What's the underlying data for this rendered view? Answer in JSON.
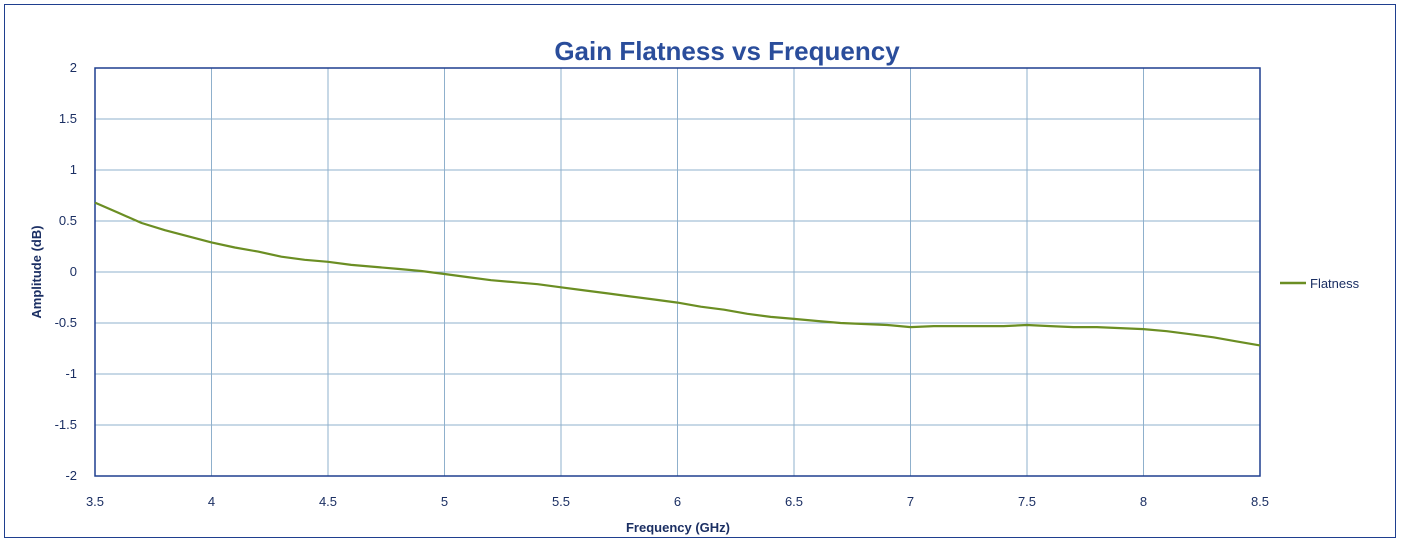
{
  "chart_data": {
    "type": "line",
    "title": "Gain Flatness vs Frequency",
    "xlabel": "Frequency (GHz)",
    "ylabel": "Amplitude (dB)",
    "xlim": [
      3.5,
      8.5
    ],
    "ylim": [
      -2,
      2
    ],
    "x_ticks": [
      "3.5",
      "4",
      "4.5",
      "5",
      "5.5",
      "6",
      "6.5",
      "7",
      "7.5",
      "8",
      "8.5"
    ],
    "y_ticks": [
      "2",
      "1.5",
      "1",
      "0.5",
      "0",
      "-0.5",
      "-1",
      "-1.5",
      "-2"
    ],
    "grid": true,
    "legend": "right",
    "series": [
      {
        "name": "Flatness",
        "color": "#6b8e23",
        "x": [
          3.5,
          3.6,
          3.7,
          3.8,
          3.9,
          4.0,
          4.1,
          4.2,
          4.3,
          4.4,
          4.5,
          4.6,
          4.7,
          4.8,
          4.9,
          5.0,
          5.1,
          5.2,
          5.3,
          5.4,
          5.5,
          5.6,
          5.7,
          5.8,
          5.9,
          6.0,
          6.1,
          6.2,
          6.3,
          6.4,
          6.5,
          6.6,
          6.7,
          6.8,
          6.9,
          7.0,
          7.1,
          7.2,
          7.3,
          7.4,
          7.5,
          7.6,
          7.7,
          7.8,
          7.9,
          8.0,
          8.1,
          8.2,
          8.3,
          8.4,
          8.5
        ],
        "y": [
          0.68,
          0.58,
          0.48,
          0.41,
          0.35,
          0.29,
          0.24,
          0.2,
          0.15,
          0.12,
          0.1,
          0.07,
          0.05,
          0.03,
          0.01,
          -0.02,
          -0.05,
          -0.08,
          -0.1,
          -0.12,
          -0.15,
          -0.18,
          -0.21,
          -0.24,
          -0.27,
          -0.3,
          -0.34,
          -0.37,
          -0.41,
          -0.44,
          -0.46,
          -0.48,
          -0.5,
          -0.51,
          -0.52,
          -0.54,
          -0.53,
          -0.53,
          -0.53,
          -0.53,
          -0.52,
          -0.53,
          -0.54,
          -0.54,
          -0.55,
          -0.56,
          -0.58,
          -0.61,
          -0.64,
          -0.68,
          -0.72
        ]
      }
    ]
  }
}
